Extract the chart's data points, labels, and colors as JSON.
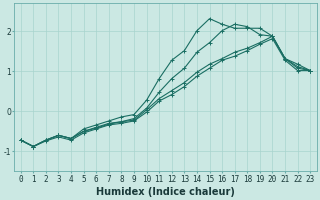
{
  "xlabel": "Humidex (Indice chaleur)",
  "ylabel": "",
  "xlim": [
    -0.5,
    23.5
  ],
  "ylim": [
    -1.5,
    2.7
  ],
  "background_color": "#cbe8e3",
  "grid_color": "#a8d4ce",
  "line_color": "#1a6e63",
  "x": [
    0,
    1,
    2,
    3,
    4,
    5,
    6,
    7,
    8,
    9,
    10,
    11,
    12,
    13,
    14,
    15,
    16,
    17,
    18,
    19,
    20,
    21,
    22,
    23
  ],
  "lines": [
    [
      -0.72,
      -0.88,
      -0.72,
      -0.6,
      -0.68,
      -0.5,
      -0.42,
      -0.32,
      -0.26,
      -0.18,
      0.08,
      0.48,
      0.82,
      1.08,
      1.48,
      1.72,
      2.02,
      2.18,
      2.12,
      1.92,
      1.88,
      1.32,
      1.12,
      1.02
    ],
    [
      -0.72,
      -0.88,
      -0.72,
      -0.6,
      -0.68,
      -0.44,
      -0.34,
      -0.24,
      -0.14,
      -0.08,
      0.28,
      0.82,
      1.28,
      1.52,
      2.02,
      2.32,
      2.18,
      2.08,
      2.08,
      2.08,
      1.88,
      1.32,
      1.18,
      1.02
    ],
    [
      -0.72,
      -0.88,
      -0.72,
      -0.6,
      -0.68,
      -0.5,
      -0.4,
      -0.3,
      -0.26,
      -0.22,
      0.04,
      0.32,
      0.52,
      0.72,
      0.98,
      1.18,
      1.32,
      1.48,
      1.58,
      1.72,
      1.88,
      1.32,
      1.08,
      1.02
    ],
    [
      -0.72,
      -0.88,
      -0.74,
      -0.64,
      -0.72,
      -0.54,
      -0.44,
      -0.34,
      -0.3,
      -0.24,
      -0.02,
      0.26,
      0.42,
      0.62,
      0.88,
      1.08,
      1.28,
      1.38,
      1.52,
      1.68,
      1.82,
      1.28,
      1.02,
      1.02
    ]
  ],
  "xtick_labels": [
    "0",
    "1",
    "2",
    "3",
    "4",
    "5",
    "6",
    "7",
    "8",
    "9",
    "10",
    "11",
    "12",
    "13",
    "14",
    "15",
    "16",
    "17",
    "18",
    "19",
    "20",
    "21",
    "22",
    "23"
  ],
  "ytick_values": [
    -1,
    0,
    1,
    2
  ],
  "fontsize_xlabel": 7,
  "fontsize_ticks": 5.5
}
